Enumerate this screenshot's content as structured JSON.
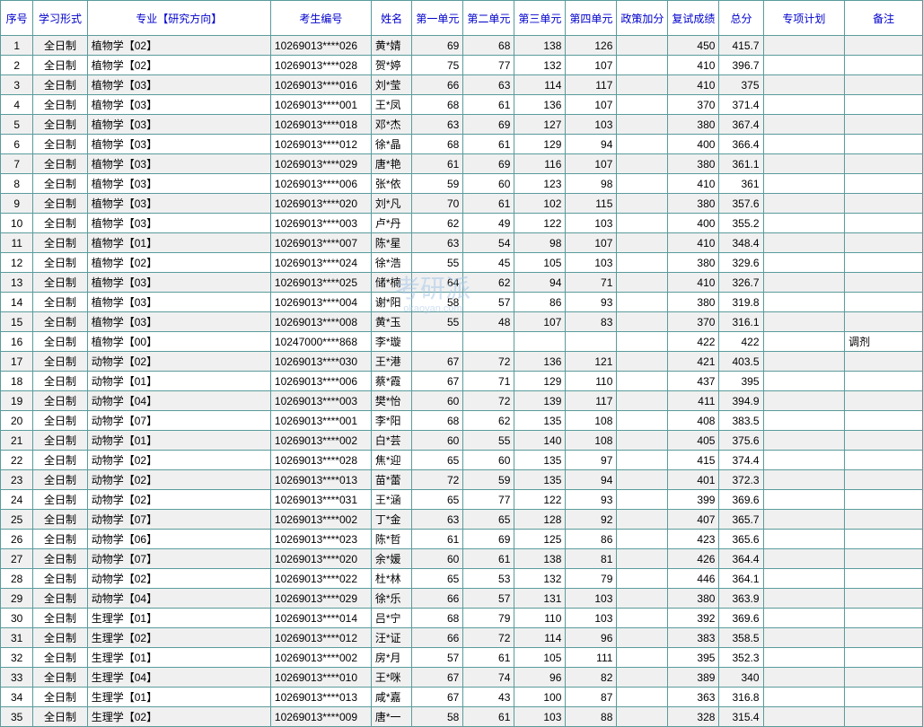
{
  "headers": {
    "seq": "序号",
    "mode": "学习形式",
    "major": "专业【研究方向】",
    "id": "考生编号",
    "name": "姓名",
    "u1": "第一单元",
    "u2": "第二单元",
    "u3": "第三单元",
    "u4": "第四单元",
    "bonus": "政策加分",
    "re": "复试成绩",
    "total": "总分",
    "plan": "专项计划",
    "note": "备注"
  },
  "watermark": {
    "main": "考研派",
    "sub": "okaoyan.com"
  },
  "style": {
    "border_color": "#5a9b9b",
    "header_text_color": "#0000cc",
    "odd_row_bg": "#f0f0f0",
    "even_row_bg": "#ffffff",
    "font_size": 12
  },
  "rows": [
    {
      "seq": 1,
      "mode": "全日制",
      "major": "植物学【02】",
      "id": "10269013****026",
      "name": "黄*婧",
      "u1": 69,
      "u2": 68,
      "u3": 138,
      "u4": 126,
      "bonus": "",
      "re": 450,
      "total": "415.7",
      "plan": "",
      "note": ""
    },
    {
      "seq": 2,
      "mode": "全日制",
      "major": "植物学【02】",
      "id": "10269013****028",
      "name": "贺*婷",
      "u1": 75,
      "u2": 77,
      "u3": 132,
      "u4": 107,
      "bonus": "",
      "re": 410,
      "total": "396.7",
      "plan": "",
      "note": ""
    },
    {
      "seq": 3,
      "mode": "全日制",
      "major": "植物学【03】",
      "id": "10269013****016",
      "name": "刘*莹",
      "u1": 66,
      "u2": 63,
      "u3": 114,
      "u4": 117,
      "bonus": "",
      "re": 410,
      "total": "375",
      "plan": "",
      "note": ""
    },
    {
      "seq": 4,
      "mode": "全日制",
      "major": "植物学【03】",
      "id": "10269013****001",
      "name": "王*凤",
      "u1": 68,
      "u2": 61,
      "u3": 136,
      "u4": 107,
      "bonus": "",
      "re": 370,
      "total": "371.4",
      "plan": "",
      "note": ""
    },
    {
      "seq": 5,
      "mode": "全日制",
      "major": "植物学【03】",
      "id": "10269013****018",
      "name": "邓*杰",
      "u1": 63,
      "u2": 69,
      "u3": 127,
      "u4": 103,
      "bonus": "",
      "re": 380,
      "total": "367.4",
      "plan": "",
      "note": ""
    },
    {
      "seq": 6,
      "mode": "全日制",
      "major": "植物学【03】",
      "id": "10269013****012",
      "name": "徐*晶",
      "u1": 68,
      "u2": 61,
      "u3": 129,
      "u4": 94,
      "bonus": "",
      "re": 400,
      "total": "366.4",
      "plan": "",
      "note": ""
    },
    {
      "seq": 7,
      "mode": "全日制",
      "major": "植物学【03】",
      "id": "10269013****029",
      "name": "唐*艳",
      "u1": 61,
      "u2": 69,
      "u3": 116,
      "u4": 107,
      "bonus": "",
      "re": 380,
      "total": "361.1",
      "plan": "",
      "note": ""
    },
    {
      "seq": 8,
      "mode": "全日制",
      "major": "植物学【03】",
      "id": "10269013****006",
      "name": "张*依",
      "u1": 59,
      "u2": 60,
      "u3": 123,
      "u4": 98,
      "bonus": "",
      "re": 410,
      "total": "361",
      "plan": "",
      "note": ""
    },
    {
      "seq": 9,
      "mode": "全日制",
      "major": "植物学【03】",
      "id": "10269013****020",
      "name": "刘*凡",
      "u1": 70,
      "u2": 61,
      "u3": 102,
      "u4": 115,
      "bonus": "",
      "re": 380,
      "total": "357.6",
      "plan": "",
      "note": ""
    },
    {
      "seq": 10,
      "mode": "全日制",
      "major": "植物学【03】",
      "id": "10269013****003",
      "name": "卢*丹",
      "u1": 62,
      "u2": 49,
      "u3": 122,
      "u4": 103,
      "bonus": "",
      "re": 400,
      "total": "355.2",
      "plan": "",
      "note": ""
    },
    {
      "seq": 11,
      "mode": "全日制",
      "major": "植物学【01】",
      "id": "10269013****007",
      "name": "陈*星",
      "u1": 63,
      "u2": 54,
      "u3": 98,
      "u4": 107,
      "bonus": "",
      "re": 410,
      "total": "348.4",
      "plan": "",
      "note": ""
    },
    {
      "seq": 12,
      "mode": "全日制",
      "major": "植物学【02】",
      "id": "10269013****024",
      "name": "徐*浩",
      "u1": 55,
      "u2": 45,
      "u3": 105,
      "u4": 103,
      "bonus": "",
      "re": 380,
      "total": "329.6",
      "plan": "",
      "note": ""
    },
    {
      "seq": 13,
      "mode": "全日制",
      "major": "植物学【03】",
      "id": "10269013****025",
      "name": "储*楠",
      "u1": 64,
      "u2": 62,
      "u3": 94,
      "u4": 71,
      "bonus": "",
      "re": 410,
      "total": "326.7",
      "plan": "",
      "note": ""
    },
    {
      "seq": 14,
      "mode": "全日制",
      "major": "植物学【03】",
      "id": "10269013****004",
      "name": "谢*阳",
      "u1": 58,
      "u2": 57,
      "u3": 86,
      "u4": 93,
      "bonus": "",
      "re": 380,
      "total": "319.8",
      "plan": "",
      "note": ""
    },
    {
      "seq": 15,
      "mode": "全日制",
      "major": "植物学【03】",
      "id": "10269013****008",
      "name": "黄*玉",
      "u1": 55,
      "u2": 48,
      "u3": 107,
      "u4": 83,
      "bonus": "",
      "re": 370,
      "total": "316.1",
      "plan": "",
      "note": ""
    },
    {
      "seq": 16,
      "mode": "全日制",
      "major": "植物学【00】",
      "id": "10247000****868",
      "name": "李*璇",
      "u1": "",
      "u2": "",
      "u3": "",
      "u4": "",
      "bonus": "",
      "re": 422,
      "total": "422",
      "plan": "",
      "note": "调剂"
    },
    {
      "seq": 17,
      "mode": "全日制",
      "major": "动物学【02】",
      "id": "10269013****030",
      "name": "王*港",
      "u1": 67,
      "u2": 72,
      "u3": 136,
      "u4": 121,
      "bonus": "",
      "re": 421,
      "total": "403.5",
      "plan": "",
      "note": ""
    },
    {
      "seq": 18,
      "mode": "全日制",
      "major": "动物学【01】",
      "id": "10269013****006",
      "name": "蔡*霞",
      "u1": 67,
      "u2": 71,
      "u3": 129,
      "u4": 110,
      "bonus": "",
      "re": 437,
      "total": "395",
      "plan": "",
      "note": ""
    },
    {
      "seq": 19,
      "mode": "全日制",
      "major": "动物学【04】",
      "id": "10269013****003",
      "name": "樊*怡",
      "u1": 60,
      "u2": 72,
      "u3": 139,
      "u4": 117,
      "bonus": "",
      "re": 411,
      "total": "394.9",
      "plan": "",
      "note": ""
    },
    {
      "seq": 20,
      "mode": "全日制",
      "major": "动物学【07】",
      "id": "10269013****001",
      "name": "李*阳",
      "u1": 68,
      "u2": 62,
      "u3": 135,
      "u4": 108,
      "bonus": "",
      "re": 408,
      "total": "383.5",
      "plan": "",
      "note": ""
    },
    {
      "seq": 21,
      "mode": "全日制",
      "major": "动物学【01】",
      "id": "10269013****002",
      "name": "白*芸",
      "u1": 60,
      "u2": 55,
      "u3": 140,
      "u4": 108,
      "bonus": "",
      "re": 405,
      "total": "375.6",
      "plan": "",
      "note": ""
    },
    {
      "seq": 22,
      "mode": "全日制",
      "major": "动物学【02】",
      "id": "10269013****028",
      "name": "焦*迎",
      "u1": 65,
      "u2": 60,
      "u3": 135,
      "u4": 97,
      "bonus": "",
      "re": 415,
      "total": "374.4",
      "plan": "",
      "note": ""
    },
    {
      "seq": 23,
      "mode": "全日制",
      "major": "动物学【02】",
      "id": "10269013****013",
      "name": "苗*蕾",
      "u1": 72,
      "u2": 59,
      "u3": 135,
      "u4": 94,
      "bonus": "",
      "re": 401,
      "total": "372.3",
      "plan": "",
      "note": ""
    },
    {
      "seq": 24,
      "mode": "全日制",
      "major": "动物学【02】",
      "id": "10269013****031",
      "name": "王*涵",
      "u1": 65,
      "u2": 77,
      "u3": 122,
      "u4": 93,
      "bonus": "",
      "re": 399,
      "total": "369.6",
      "plan": "",
      "note": ""
    },
    {
      "seq": 25,
      "mode": "全日制",
      "major": "动物学【07】",
      "id": "10269013****002",
      "name": "丁*金",
      "u1": 63,
      "u2": 65,
      "u3": 128,
      "u4": 92,
      "bonus": "",
      "re": 407,
      "total": "365.7",
      "plan": "",
      "note": ""
    },
    {
      "seq": 26,
      "mode": "全日制",
      "major": "动物学【06】",
      "id": "10269013****023",
      "name": "陈*哲",
      "u1": 61,
      "u2": 69,
      "u3": 125,
      "u4": 86,
      "bonus": "",
      "re": 423,
      "total": "365.6",
      "plan": "",
      "note": ""
    },
    {
      "seq": 27,
      "mode": "全日制",
      "major": "动物学【07】",
      "id": "10269013****020",
      "name": "余*媛",
      "u1": 60,
      "u2": 61,
      "u3": 138,
      "u4": 81,
      "bonus": "",
      "re": 426,
      "total": "364.4",
      "plan": "",
      "note": ""
    },
    {
      "seq": 28,
      "mode": "全日制",
      "major": "动物学【02】",
      "id": "10269013****022",
      "name": "杜*林",
      "u1": 65,
      "u2": 53,
      "u3": 132,
      "u4": 79,
      "bonus": "",
      "re": 446,
      "total": "364.1",
      "plan": "",
      "note": ""
    },
    {
      "seq": 29,
      "mode": "全日制",
      "major": "动物学【04】",
      "id": "10269013****029",
      "name": "徐*乐",
      "u1": 66,
      "u2": 57,
      "u3": 131,
      "u4": 103,
      "bonus": "",
      "re": 380,
      "total": "363.9",
      "plan": "",
      "note": ""
    },
    {
      "seq": 30,
      "mode": "全日制",
      "major": "生理学【01】",
      "id": "10269013****014",
      "name": "吕*宁",
      "u1": 68,
      "u2": 79,
      "u3": 110,
      "u4": 103,
      "bonus": "",
      "re": 392,
      "total": "369.6",
      "plan": "",
      "note": ""
    },
    {
      "seq": 31,
      "mode": "全日制",
      "major": "生理学【02】",
      "id": "10269013****012",
      "name": "汪*证",
      "u1": 66,
      "u2": 72,
      "u3": 114,
      "u4": 96,
      "bonus": "",
      "re": 383,
      "total": "358.5",
      "plan": "",
      "note": ""
    },
    {
      "seq": 32,
      "mode": "全日制",
      "major": "生理学【01】",
      "id": "10269013****002",
      "name": "房*月",
      "u1": 57,
      "u2": 61,
      "u3": 105,
      "u4": 111,
      "bonus": "",
      "re": 395,
      "total": "352.3",
      "plan": "",
      "note": ""
    },
    {
      "seq": 33,
      "mode": "全日制",
      "major": "生理学【04】",
      "id": "10269013****010",
      "name": "王*咪",
      "u1": 67,
      "u2": 74,
      "u3": 96,
      "u4": 82,
      "bonus": "",
      "re": 389,
      "total": "340",
      "plan": "",
      "note": ""
    },
    {
      "seq": 34,
      "mode": "全日制",
      "major": "生理学【01】",
      "id": "10269013****013",
      "name": "咸*嘉",
      "u1": 67,
      "u2": 43,
      "u3": 100,
      "u4": 87,
      "bonus": "",
      "re": 363,
      "total": "316.8",
      "plan": "",
      "note": ""
    },
    {
      "seq": 35,
      "mode": "全日制",
      "major": "生理学【02】",
      "id": "10269013****009",
      "name": "唐*一",
      "u1": 58,
      "u2": 61,
      "u3": 103,
      "u4": 88,
      "bonus": "",
      "re": 328,
      "total": "315.4",
      "plan": "",
      "note": ""
    }
  ]
}
